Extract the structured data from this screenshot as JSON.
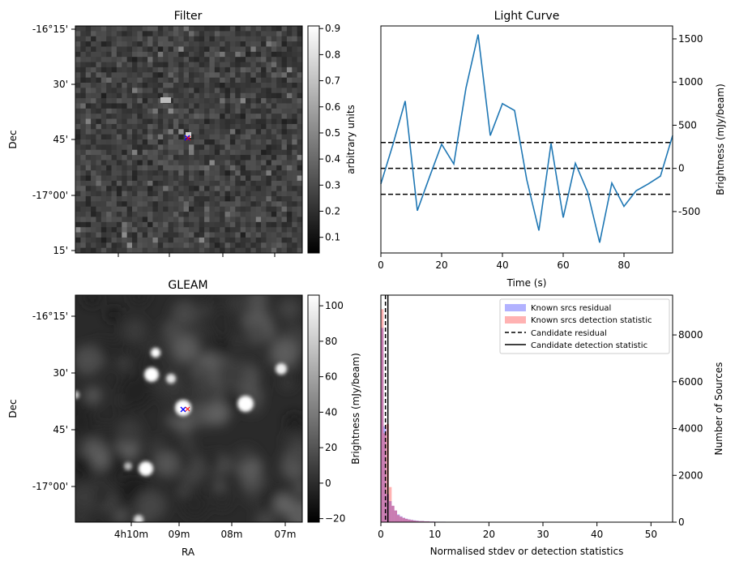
{
  "chart_data": [
    {
      "type": "heatmap",
      "title": "Filter",
      "ylabel": "Dec",
      "y_ticks": [
        "-16°15'",
        "30'",
        "45'",
        "-17°00'",
        "15'"
      ],
      "colorbar": {
        "label": "arbitrary units",
        "range": [
          0.04,
          0.91
        ],
        "ticks": [
          "0.1",
          "0.2",
          "0.3",
          "0.4",
          "0.5",
          "0.6",
          "0.7",
          "0.8",
          "0.9"
        ],
        "colormap": "gray"
      },
      "grid_size": [
        44,
        44
      ],
      "marker_colors": [
        "#0000ff",
        "#ff0000"
      ]
    },
    {
      "type": "line",
      "title": "Light Curve",
      "xlabel": "Time (s)",
      "ylabel": "Brightness (mJy/beam)",
      "xlim": [
        0,
        96
      ],
      "ylim": [
        -980,
        1650
      ],
      "x_ticks": [
        "0",
        "20",
        "40",
        "60",
        "80"
      ],
      "y_ticks": [
        "-500",
        "0",
        "500",
        "1000",
        "1500"
      ],
      "line_color": "#1f77b4",
      "series": [
        {
          "x": [
            0,
            4,
            8,
            12,
            16,
            20,
            24,
            28,
            32,
            36,
            40,
            44,
            48,
            52,
            56,
            60,
            64,
            68,
            72,
            76,
            80,
            84,
            88,
            92,
            96
          ],
          "y": [
            -180,
            280,
            780,
            -490,
            -100,
            280,
            50,
            930,
            1550,
            380,
            750,
            670,
            -130,
            -720,
            290,
            -570,
            60,
            -270,
            -860,
            -170,
            -440,
            -260,
            -180,
            -90,
            380
          ]
        }
      ],
      "hlines": [
        300,
        0,
        -300
      ]
    },
    {
      "type": "heatmap",
      "title": "GLEAM",
      "xlabel": "RA",
      "ylabel": "Dec",
      "x_ticks": [
        "4h10m",
        "09m",
        "08m",
        "07m"
      ],
      "y_ticks": [
        "-16°15'",
        "30'",
        "45'",
        "-17°00'"
      ],
      "colorbar": {
        "label": "Brightness (mJy/beam)",
        "range": [
          -22,
          106
        ],
        "ticks": [
          "−20",
          "0",
          "20",
          "40",
          "60",
          "80",
          "100"
        ],
        "colormap": "gray"
      },
      "marker_colors": [
        "#0000ff",
        "#ff0000"
      ]
    },
    {
      "type": "bar",
      "xlabel": "Normalised stdev or detection statistics",
      "ylabel": "Number of Sources",
      "xlim": [
        0,
        54
      ],
      "ylim": [
        0,
        9700
      ],
      "x_ticks": [
        "0",
        "10",
        "20",
        "30",
        "40",
        "50"
      ],
      "y_ticks": [
        "0",
        "2000",
        "4000",
        "6000",
        "8000"
      ],
      "legend": [
        "Known srcs residual",
        "Known srcs detection statistic",
        "Candidate residual",
        "Candidate detection statistic"
      ],
      "legend_position": "top-right",
      "bin_edges": [
        0,
        0.5,
        1.0,
        1.5,
        2.0,
        2.5,
        3.0,
        3.5,
        4.0,
        4.5,
        5.0,
        5.5,
        6.0,
        6.5,
        7.0,
        8.0,
        9.0,
        10.0,
        12.0,
        15.0,
        20.0,
        25.0,
        30.0,
        40.0,
        50.0,
        52.0
      ],
      "series": [
        {
          "name": "Known srcs residual",
          "color": "#0000ff",
          "values": [
            8300,
            4100,
            1200,
            900,
            700,
            500,
            330,
            250,
            190,
            150,
            120,
            100,
            80,
            65,
            50,
            38,
            28,
            20,
            14,
            10,
            7,
            5,
            4,
            3,
            2
          ]
        },
        {
          "name": "Known srcs detection statistic",
          "color": "#ff0000",
          "values": [
            9100,
            3800,
            4200,
            1500,
            700,
            500,
            300,
            230,
            180,
            140,
            110,
            90,
            70,
            55,
            45,
            35,
            25,
            18,
            12,
            9,
            6,
            5,
            4,
            3,
            2
          ]
        }
      ],
      "vlines": [
        {
          "name": "Candidate residual",
          "x": 0.85,
          "style": "dashed"
        },
        {
          "name": "Candidate detection statistic",
          "x": 1.3,
          "style": "solid"
        }
      ]
    }
  ]
}
